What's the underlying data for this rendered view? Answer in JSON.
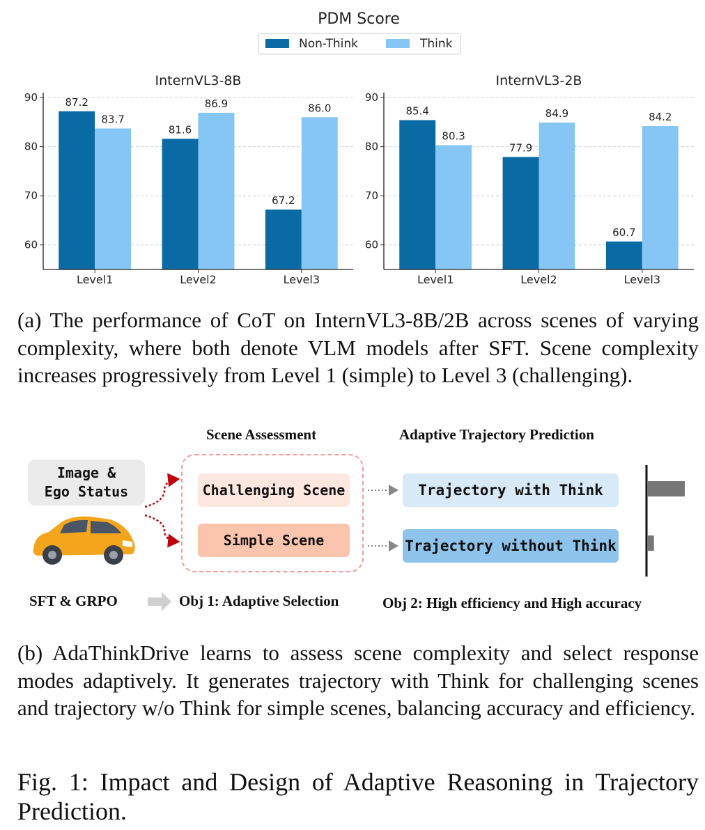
{
  "chart_data": [
    {
      "type": "bar",
      "title": "InternVL3-8B",
      "categories": [
        "Level1",
        "Level2",
        "Level3"
      ],
      "series": [
        {
          "name": "Non-Think",
          "values": [
            87.2,
            81.6,
            67.2
          ]
        },
        {
          "name": "Think",
          "values": [
            83.7,
            86.9,
            86.0
          ]
        }
      ],
      "ylim": [
        55,
        91
      ],
      "yticks": [
        60,
        70,
        80,
        90
      ],
      "grid": true
    },
    {
      "type": "bar",
      "title": "InternVL3-2B",
      "categories": [
        "Level1",
        "Level2",
        "Level3"
      ],
      "series": [
        {
          "name": "Non-Think",
          "values": [
            85.4,
            77.9,
            60.7
          ]
        },
        {
          "name": "Think",
          "values": [
            80.3,
            84.9,
            84.2
          ]
        }
      ],
      "ylim": [
        55,
        91
      ],
      "yticks": [
        60,
        70,
        80,
        90
      ],
      "grid": true
    }
  ],
  "figure": {
    "suptitle": "PDM Score",
    "legend": [
      "Non-Think",
      "Think"
    ],
    "colors": {
      "non_think": "#0a6aa4",
      "think": "#85c6f4"
    }
  },
  "captions": {
    "a": "(a) The performance of CoT on InternVL3-8B/2B across scenes of varying complexity, where both denote VLM models after SFT. Scene complexity increases progressively from Level 1 (simple) to Level 3 (challenging).",
    "b": "(b) AdaThinkDrive learns to assess scene complexity and select response modes adaptively. It generates trajectory with Think for challenging scenes and trajectory w/o Think for simple scenes, balancing accuracy and efficiency.",
    "figure": "Fig. 1: Impact and Design of Adaptive Reasoning in Trajectory Prediction."
  },
  "diagram": {
    "heading_assessment": "Scene Assessment",
    "heading_prediction": "Adaptive Trajectory Prediction",
    "input_line1": "Image &",
    "input_line2": "Ego Status",
    "challenging": "Challenging Scene",
    "simple": "Simple Scene",
    "traj_think": "Trajectory with Think",
    "traj_nothink": "Trajectory without Think",
    "sft_grpo": "SFT & GRPO",
    "obj1": "Obj 1: Adaptive Selection",
    "obj2": "Obj 2: High efficiency and High accuracy",
    "token_bars": [
      1.0,
      0.18
    ]
  }
}
